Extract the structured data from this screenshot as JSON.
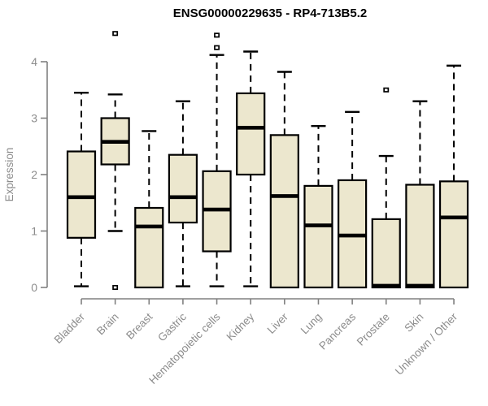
{
  "chart_data": {
    "type": "boxplot",
    "title": "ENSG00000229635 - RP4-713B5.2",
    "ylabel": "Expression",
    "xlabel": "",
    "ylim": [
      0,
      4
    ],
    "yticks": [
      "0",
      "1",
      "2",
      "3",
      "4"
    ],
    "grid": false,
    "legend": "none",
    "categories": [
      "Bladder",
      "Brain",
      "Breast",
      "Gastric",
      "Hematopoietic cells",
      "Kidney",
      "Liver",
      "Lung",
      "Pancreas",
      "Prostate",
      "Skin",
      "Unknown / Other"
    ],
    "series": [
      {
        "name": "Bladder",
        "low": 0.02,
        "q1": 0.88,
        "median": 1.6,
        "q3": 2.41,
        "high": 3.45,
        "outliers": []
      },
      {
        "name": "Brain",
        "low": 1.0,
        "q1": 2.18,
        "median": 2.58,
        "q3": 3.0,
        "high": 3.42,
        "outliers": [
          4.5,
          0.0
        ]
      },
      {
        "name": "Breast",
        "low": 0.0,
        "q1": 0.0,
        "median": 1.08,
        "q3": 1.41,
        "high": 2.77,
        "outliers": []
      },
      {
        "name": "Gastric",
        "low": 0.02,
        "q1": 1.15,
        "median": 1.6,
        "q3": 2.35,
        "high": 3.3,
        "outliers": []
      },
      {
        "name": "Hematopoietic cells",
        "low": 0.02,
        "q1": 0.64,
        "median": 1.38,
        "q3": 2.06,
        "high": 4.12,
        "outliers": [
          4.47,
          4.25
        ]
      },
      {
        "name": "Kidney",
        "low": 0.02,
        "q1": 2.0,
        "median": 2.83,
        "q3": 3.44,
        "high": 4.18,
        "outliers": []
      },
      {
        "name": "Liver",
        "low": 0.0,
        "q1": 0.0,
        "median": 1.62,
        "q3": 2.7,
        "high": 3.82,
        "outliers": []
      },
      {
        "name": "Lung",
        "low": 0.0,
        "q1": 0.0,
        "median": 1.1,
        "q3": 1.8,
        "high": 2.86,
        "outliers": []
      },
      {
        "name": "Pancreas",
        "low": 0.0,
        "q1": 0.0,
        "median": 0.92,
        "q3": 1.9,
        "high": 3.11,
        "outliers": []
      },
      {
        "name": "Prostate",
        "low": 0.0,
        "q1": 0.0,
        "median": 0.03,
        "q3": 1.21,
        "high": 2.33,
        "outliers": [
          3.5
        ]
      },
      {
        "name": "Skin",
        "low": 0.0,
        "q1": 0.0,
        "median": 0.03,
        "q3": 1.82,
        "high": 3.3,
        "outliers": []
      },
      {
        "name": "Unknown / Other",
        "low": 0.0,
        "q1": 0.0,
        "median": 1.24,
        "q3": 1.88,
        "high": 3.93,
        "outliers": []
      }
    ],
    "colors": {
      "box_fill": "#ECE7CE",
      "box_border": "#000000",
      "median": "#000000",
      "whisker": "#000000",
      "outlier_fill": "#FFFFFF",
      "axis": "#808080",
      "tick_text": "#8C8C8C",
      "title_text": "#000000"
    }
  }
}
